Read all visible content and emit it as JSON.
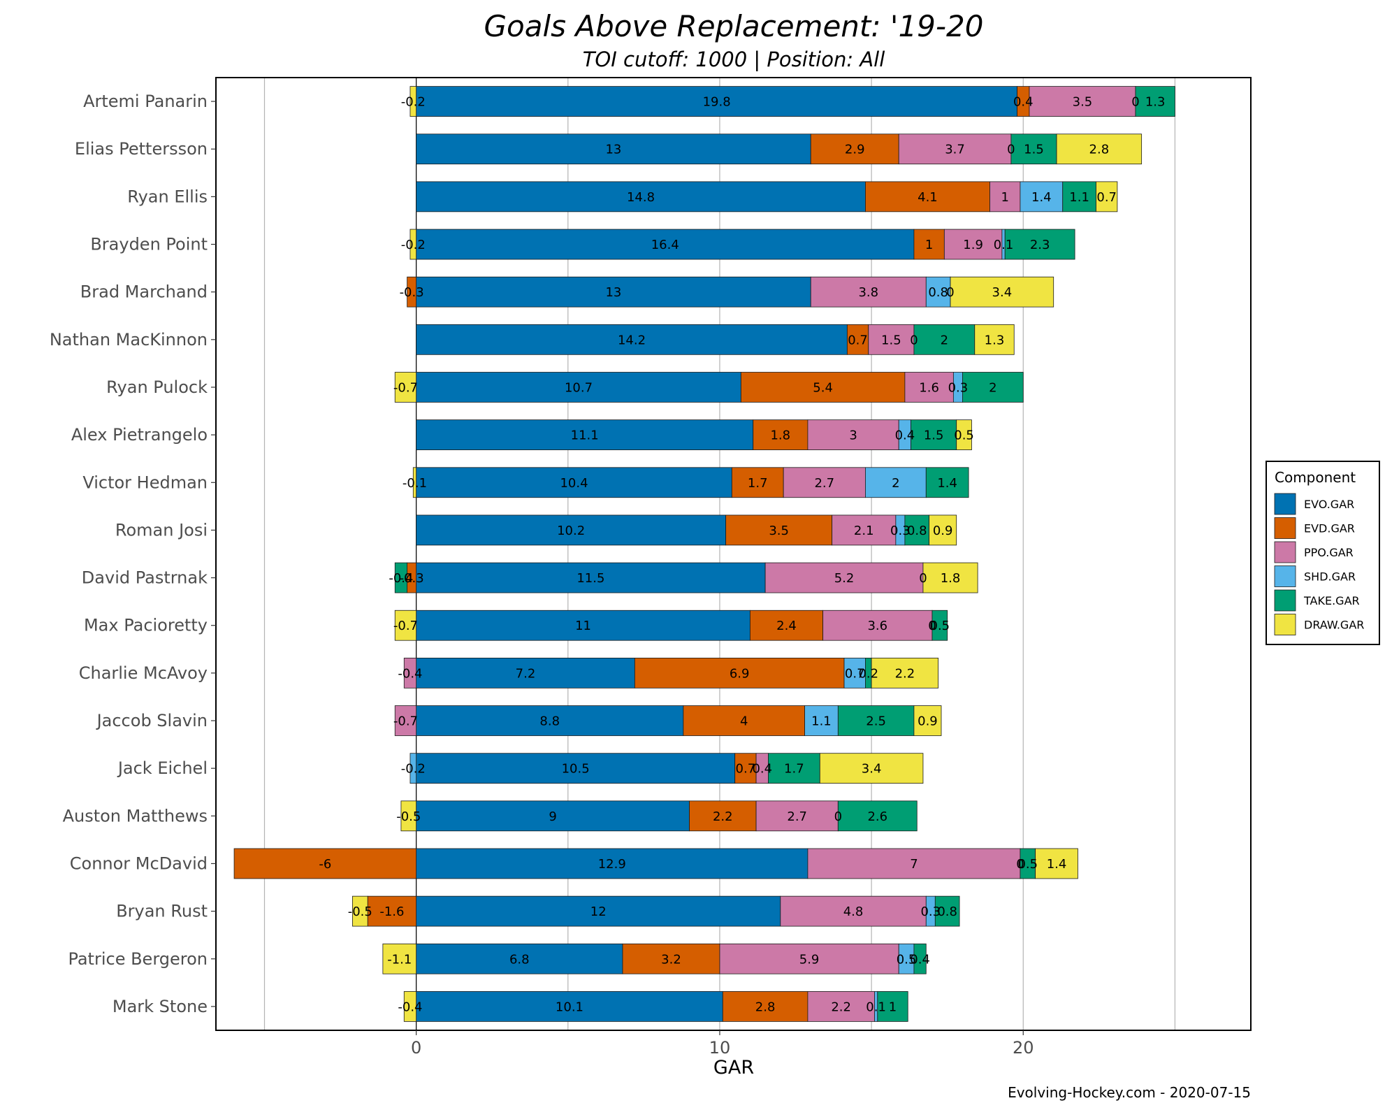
{
  "chart_data": {
    "type": "bar",
    "orientation": "horizontal",
    "stacked": true,
    "title": "Goals Above Replacement: '19-20",
    "subtitle": "TOI cutoff: 1000 | Position: All",
    "xlabel": "GAR",
    "ylabel": "",
    "xlim": [
      -6.6,
      27.5
    ],
    "xticks": [
      0,
      10,
      20
    ],
    "gridlines_x": [
      -5,
      0,
      5,
      10,
      15,
      20,
      25
    ],
    "grid": true,
    "legend": {
      "title": "Component",
      "placement": "right"
    },
    "caption": "Evolving-Hockey.com - 2020-07-15",
    "categories": [
      "Artemi Panarin",
      "Elias Pettersson",
      "Ryan Ellis",
      "Brayden Point",
      "Brad Marchand",
      "Nathan MacKinnon",
      "Ryan Pulock",
      "Alex Pietrangelo",
      "Victor Hedman",
      "Roman Josi",
      "David Pastrnak",
      "Max Pacioretty",
      "Charlie McAvoy",
      "Jaccob Slavin",
      "Jack Eichel",
      "Auston Matthews",
      "Connor McDavid",
      "Bryan Rust",
      "Patrice Bergeron",
      "Mark Stone"
    ],
    "series": [
      {
        "name": "EVO.GAR",
        "color": "#0072B2",
        "values": [
          19.8,
          13,
          14.8,
          16.4,
          13,
          14.2,
          10.7,
          11.1,
          10.4,
          10.2,
          11.5,
          11,
          7.2,
          8.8,
          10.5,
          9,
          12.9,
          12,
          6.8,
          10.1
        ]
      },
      {
        "name": "EVD.GAR",
        "color": "#D55E00",
        "values": [
          0.4,
          2.9,
          4.1,
          1,
          -0.3,
          0.7,
          5.4,
          1.8,
          1.7,
          3.5,
          -0.3,
          2.4,
          6.9,
          4,
          0.7,
          2.2,
          -6,
          -1.6,
          3.2,
          2.8
        ]
      },
      {
        "name": "PPO.GAR",
        "color": "#CC79A7",
        "values": [
          3.5,
          3.7,
          1,
          1.9,
          3.8,
          1.5,
          1.6,
          3,
          2.7,
          2.1,
          5.2,
          3.6,
          -0.4,
          -0.7,
          0.4,
          2.7,
          7,
          4.8,
          5.9,
          2.2
        ]
      },
      {
        "name": "SHD.GAR",
        "color": "#56B4E9",
        "values": [
          0,
          0,
          1.4,
          0.1,
          0.8,
          0,
          0.3,
          0.4,
          2,
          0.3,
          0,
          0,
          0.7,
          1.1,
          -0.2,
          0,
          0,
          0.3,
          0.5,
          0.1
        ]
      },
      {
        "name": "TAKE.GAR",
        "color": "#009E73",
        "values": [
          1.3,
          1.5,
          1.1,
          2.3,
          0,
          2,
          2,
          1.5,
          1.4,
          0.8,
          -0.4,
          0.5,
          0.2,
          2.5,
          1.7,
          2.6,
          0.5,
          0.8,
          0.4,
          1
        ]
      },
      {
        "name": "DRAW.GAR",
        "color": "#F0E442",
        "values": [
          -0.2,
          2.8,
          0.7,
          -0.2,
          3.4,
          1.3,
          -0.7,
          0.5,
          -0.1,
          0.9,
          1.8,
          -0.7,
          2.2,
          0.9,
          3.4,
          -0.5,
          1.4,
          -0.5,
          -1.1,
          -0.4
        ]
      }
    ]
  }
}
